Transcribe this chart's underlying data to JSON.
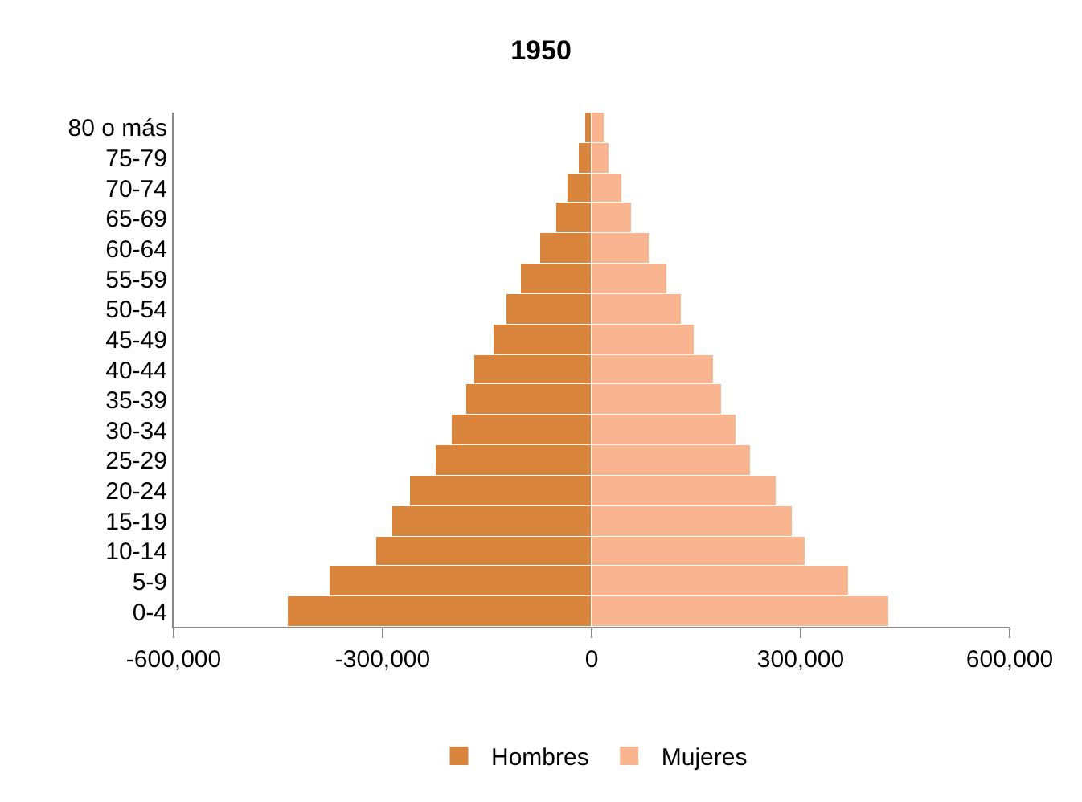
{
  "chart_data": {
    "type": "bar",
    "orientation": "horizontal",
    "stacked": true,
    "title": "1950",
    "categories": [
      "80 o más",
      "75-79",
      "70-74",
      "65-69",
      "60-64",
      "55-59",
      "50-54",
      "45-49",
      "40-44",
      "35-39",
      "30-34",
      "25-29",
      "20-24",
      "15-19",
      "10-14",
      "5-9",
      "0-4"
    ],
    "series": [
      {
        "name": "Hombres",
        "color": "#d9843c",
        "values": [
          -10000,
          -18000,
          -34000,
          -50000,
          -75000,
          -101000,
          -122000,
          -141000,
          -169000,
          -179000,
          -200000,
          -223000,
          -261000,
          -286000,
          -310000,
          -376000,
          -437000
        ]
      },
      {
        "name": "Mujeres",
        "color": "#f8b58f",
        "values": [
          18000,
          25000,
          43000,
          58000,
          82000,
          109000,
          130000,
          148000,
          175000,
          186000,
          208000,
          228000,
          266000,
          289000,
          306000,
          370000,
          428000
        ]
      }
    ],
    "xlim": [
      -600000,
      600000
    ],
    "xticks": [
      {
        "value": -600000,
        "label": "-600,000"
      },
      {
        "value": -300000,
        "label": "-300,000"
      },
      0,
      {
        "value": 300000,
        "label": "300,000"
      },
      {
        "value": 600000,
        "label": "600,000"
      }
    ],
    "legend": "bottom"
  }
}
